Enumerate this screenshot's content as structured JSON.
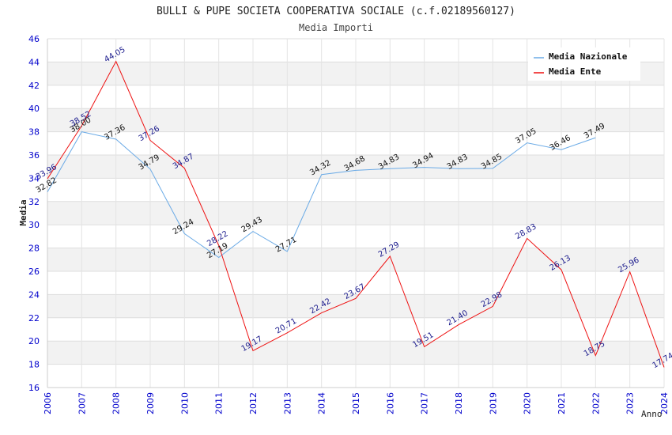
{
  "chart_data": {
    "type": "line",
    "title": "BULLI & PUPE SOCIETA COOPERATIVA SOCIALE (c.f.02189560127)",
    "subtitle": "Media Importi",
    "xlabel": "Anno",
    "ylabel": "Media",
    "ylim": [
      16,
      46
    ],
    "ytick_step": 2,
    "x": [
      2006,
      2007,
      2008,
      2009,
      2010,
      2011,
      2012,
      2013,
      2014,
      2015,
      2016,
      2017,
      2018,
      2019,
      2020,
      2021,
      2022,
      2023,
      2024
    ],
    "legend_position": "top-right",
    "series": [
      {
        "name": "Media Nazionale",
        "color": "#6aaae6",
        "x": [
          2006,
          2007,
          2008,
          2009,
          2010,
          2011,
          2012,
          2013,
          2014,
          2015,
          2016,
          2017,
          2018,
          2019,
          2020,
          2021,
          2022
        ],
        "values": [
          32.82,
          38.0,
          37.36,
          34.79,
          29.24,
          27.19,
          29.43,
          27.71,
          34.32,
          34.68,
          34.83,
          34.94,
          34.83,
          34.85,
          37.05,
          36.46,
          37.49
        ],
        "labels": [
          "32.82",
          "38.00",
          "37.36",
          "34.79",
          "29.24",
          "27.19",
          "29.43",
          "27.71",
          "34.32",
          "34.68",
          "34.83",
          "34.94",
          "34.83",
          "34.85",
          "37.05",
          "36.46",
          "37.49"
        ]
      },
      {
        "name": "Media Ente",
        "color": "#ee1111",
        "x": [
          2006,
          2007,
          2008,
          2009,
          2010,
          2011,
          2012,
          2013,
          2014,
          2015,
          2016,
          2017,
          2018,
          2019,
          2020,
          2021,
          2022,
          2023,
          2024
        ],
        "values": [
          33.96,
          38.52,
          44.05,
          37.26,
          34.87,
          28.22,
          19.17,
          20.71,
          22.42,
          23.67,
          27.29,
          19.51,
          21.4,
          22.98,
          28.83,
          26.13,
          18.75,
          25.96,
          17.74
        ],
        "labels": [
          "33.96",
          "38.52",
          "44.05",
          "37.26",
          "34.87",
          "28.22",
          "19.17",
          "20.71",
          "22.42",
          "23.67",
          "27.29",
          "19.51",
          "21.40",
          "22.98",
          "28.83",
          "26.13",
          "18.75",
          "25.96",
          "17.74"
        ]
      }
    ]
  }
}
